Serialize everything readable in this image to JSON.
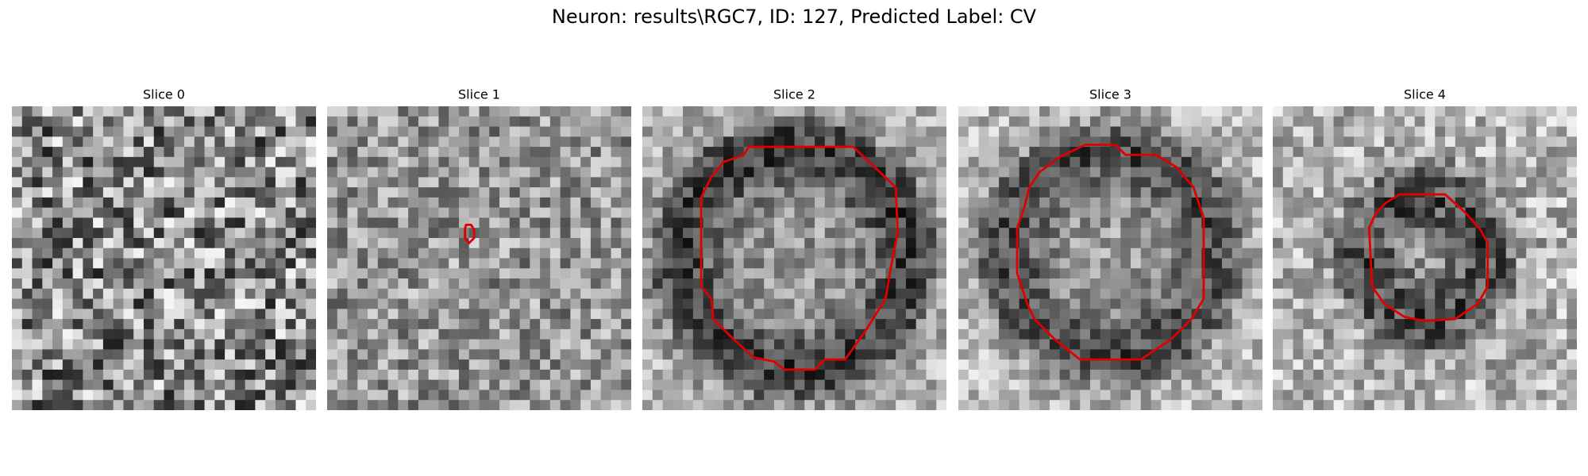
{
  "figure": {
    "title": "Neuron: results\\RGC7, ID: 127, Predicted Label: CV",
    "panels": [
      {
        "title": "Slice 0"
      },
      {
        "title": "Slice 1"
      },
      {
        "title": "Slice 2"
      },
      {
        "title": "Slice 3"
      },
      {
        "title": "Slice 4"
      }
    ]
  }
}
